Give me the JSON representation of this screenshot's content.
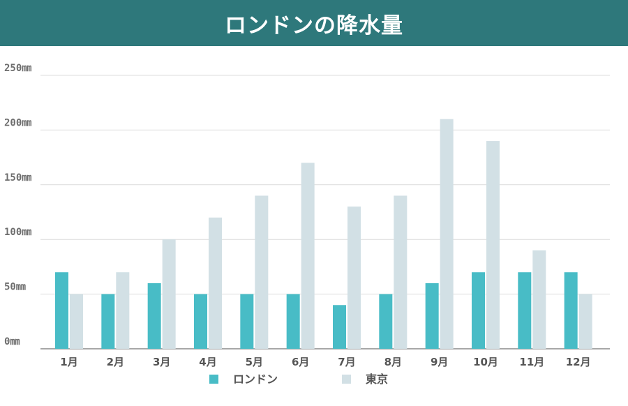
{
  "chart_data": {
    "type": "bar",
    "title": "ロンドンの降水量",
    "categories": [
      "1月",
      "2月",
      "3月",
      "4月",
      "5月",
      "6月",
      "7月",
      "8月",
      "9月",
      "10月",
      "11月",
      "12月"
    ],
    "series": [
      {
        "name": "ロンドン",
        "color": "#48bcc6",
        "values": [
          70,
          50,
          60,
          50,
          50,
          50,
          40,
          50,
          60,
          70,
          70,
          70
        ]
      },
      {
        "name": "東京",
        "color": "#d2e0e5",
        "values": [
          50,
          70,
          100,
          120,
          140,
          170,
          130,
          140,
          210,
          190,
          90,
          50
        ]
      }
    ],
    "ylim": [
      0,
      250
    ],
    "yticks": [
      "0㎜",
      "50㎜",
      "100㎜",
      "150㎜",
      "200㎜",
      "250㎜"
    ],
    "ytick_values": [
      0,
      50,
      100,
      150,
      200,
      250
    ],
    "grid": true,
    "legend_position": "bottom-center",
    "xlabel": "",
    "ylabel": ""
  },
  "colors": {
    "title_bar": "#2e787b"
  }
}
